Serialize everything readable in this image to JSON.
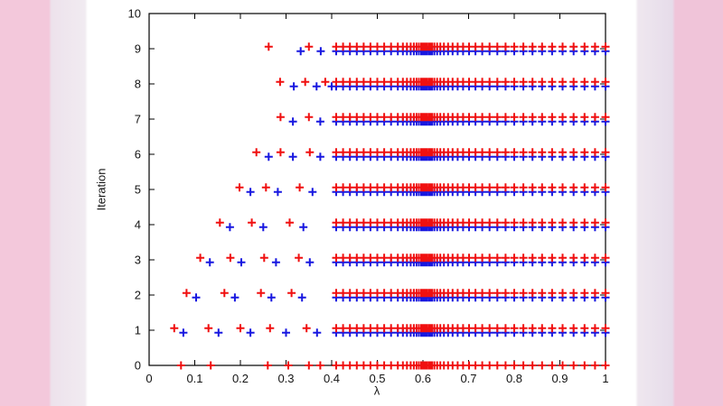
{
  "background": {
    "left_outer": "#f3c8db",
    "left_inner": "#efe7ef",
    "figure": "#ffffff",
    "right_inner": "#e6dcea",
    "right_outer": "#f0c4d9"
  },
  "chart_data": {
    "type": "scatter",
    "title": "",
    "xlabel": "λ",
    "ylabel": "Iteration",
    "xlim": [
      0,
      1
    ],
    "ylim": [
      0,
      10
    ],
    "grid": false,
    "legend": null,
    "marker": "+",
    "colors": {
      "red": "#f01010",
      "blue": "#1818e0",
      "axis": "#000000",
      "text": "#141414"
    },
    "x_tick_labels": [
      "0",
      "0.1",
      "0.2",
      "0.3",
      "0.4",
      "0.5",
      "0.6",
      "0.7",
      "0.8",
      "0.9",
      "1"
    ],
    "y_tick_labels": [
      "0",
      "1",
      "2",
      "3",
      "4",
      "5",
      "6",
      "7",
      "8",
      "9",
      "10"
    ],
    "row_offset": {
      "red": 0.06,
      "blue": -0.07
    },
    "bulk_lambdas": [
      0.41,
      0.425,
      0.44,
      0.455,
      0.47,
      0.485,
      0.5,
      0.515,
      0.53,
      0.545,
      0.556,
      0.565,
      0.573,
      0.58,
      0.586,
      0.591,
      0.596,
      0.6,
      0.604,
      0.608,
      0.612,
      0.616,
      0.62,
      0.625,
      0.631,
      0.638,
      0.646,
      0.655,
      0.665,
      0.676,
      0.688,
      0.701,
      0.715,
      0.73,
      0.746,
      0.763,
      0.781,
      0.8,
      0.82,
      0.84,
      0.861,
      0.883,
      0.906,
      0.93,
      0.954,
      0.977,
      1.0
    ],
    "iterations": [
      {
        "iteration": 0,
        "on_axis": true,
        "red_extra": [
          0.07,
          0.135,
          0.26,
          0.305,
          0.35,
          0.375
        ],
        "blue_extra": null
      },
      {
        "iteration": 1,
        "red_extra": [
          0.055,
          0.13,
          0.2,
          0.265,
          0.345
        ],
        "blue_extra": [
          0.075,
          0.152,
          0.222,
          0.3,
          0.368
        ]
      },
      {
        "iteration": 2,
        "red_extra": [
          0.082,
          0.165,
          0.245,
          0.312
        ],
        "blue_extra": [
          0.103,
          0.188,
          0.268,
          0.335
        ]
      },
      {
        "iteration": 3,
        "red_extra": [
          0.112,
          0.178,
          0.252,
          0.328
        ],
        "blue_extra": [
          0.133,
          0.202,
          0.278,
          0.352
        ]
      },
      {
        "iteration": 4,
        "red_extra": [
          0.155,
          0.225,
          0.308
        ],
        "blue_extra": [
          0.177,
          0.25,
          0.338
        ]
      },
      {
        "iteration": 5,
        "red_extra": [
          0.198,
          0.256,
          0.33
        ],
        "blue_extra": [
          0.222,
          0.282,
          0.358
        ]
      },
      {
        "iteration": 6,
        "red_extra": [
          0.235,
          0.288,
          0.352
        ],
        "blue_extra": [
          0.262,
          0.315,
          0.375
        ]
      },
      {
        "iteration": 7,
        "red_extra": [
          0.288,
          0.35
        ],
        "blue_extra": [
          0.315,
          0.375
        ]
      },
      {
        "iteration": 8,
        "red_extra": [
          0.287,
          0.342,
          0.386
        ],
        "blue_extra": [
          0.317,
          0.367,
          0.4
        ]
      },
      {
        "iteration": 9,
        "red_extra": [
          0.262,
          0.35
        ],
        "blue_extra": [
          0.332,
          0.376
        ]
      }
    ]
  }
}
